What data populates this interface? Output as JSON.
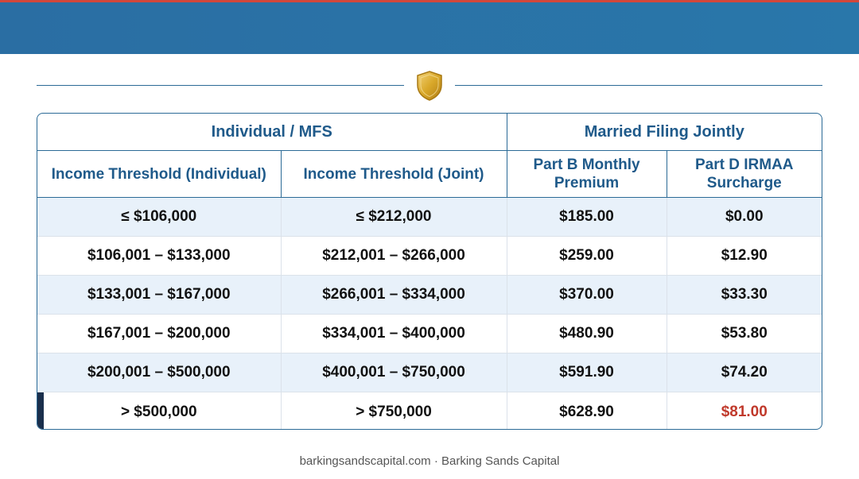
{
  "colors": {
    "banner": "#2a6ea3",
    "accent": "#d2473b",
    "header_text": "#1f5a8a",
    "row_shade": "#e8f1fa",
    "highlight": "#c0392b",
    "shield": "#d9a82a"
  },
  "decor": {
    "icon": "shield-icon"
  },
  "table": {
    "group_headers": [
      "Individual / MFS",
      "Married Filing Jointly"
    ],
    "columns": [
      "Income Threshold (Individual)",
      "Income Threshold (Joint)",
      "Part B Monthly Premium",
      "Part D IRMAA Surcharge"
    ],
    "rows": [
      [
        "≤ $106,000",
        "≤ $212,000",
        "$185.00",
        "$0.00"
      ],
      [
        "$106,001 – $133,000",
        "$212,001 – $266,000",
        "$259.00",
        "$12.90"
      ],
      [
        "$133,001 – $167,000",
        "$266,001 – $334,000",
        "$370.00",
        "$33.30"
      ],
      [
        "$167,001 – $200,000",
        "$334,001 – $400,000",
        "$480.90",
        "$53.80"
      ],
      [
        "$200,001 – $500,000",
        "$400,001 – $750,000",
        "$591.90",
        "$74.20"
      ],
      [
        "> $500,000",
        "> $750,000",
        "$628.90",
        "$81.00"
      ]
    ]
  },
  "footer": {
    "text": "barkingsandscapital.com · Barking Sands Capital"
  }
}
